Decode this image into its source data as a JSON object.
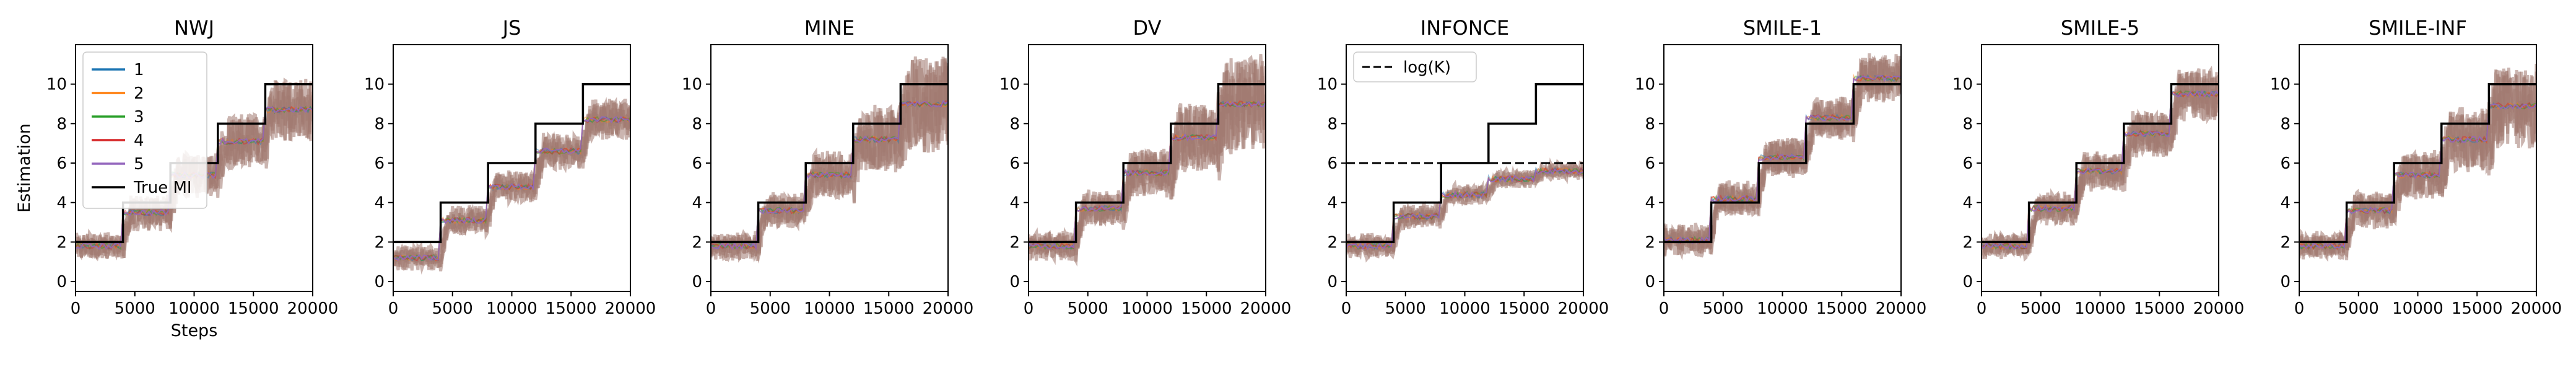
{
  "figure": {
    "ylabel": "Estimation",
    "xlabel": "Steps"
  },
  "colors": {
    "run_1": "#1f77b4",
    "run_2": "#ff7f0e",
    "run_3": "#2ca02c",
    "run_4": "#d62728",
    "run_5": "#9467bd",
    "true_mi": "#000000",
    "noise_band": "#a0786f"
  },
  "legend_entries": [
    "1",
    "2",
    "3",
    "4",
    "5",
    "True MI"
  ],
  "chart_data": [
    {
      "type": "line",
      "title": "NWJ",
      "xlim": [
        0,
        20000
      ],
      "ylim": [
        -0.5,
        12
      ],
      "xticks": [
        0,
        5000,
        10000,
        15000,
        20000
      ],
      "yticks": [
        0,
        2,
        4,
        6,
        8,
        10
      ],
      "true_mi": {
        "x": [
          0,
          4000,
          4000,
          8000,
          8000,
          12000,
          12000,
          16000,
          16000,
          20000
        ],
        "y": [
          2,
          2,
          4,
          4,
          6,
          6,
          8,
          8,
          10,
          10
        ]
      },
      "series": [
        {
          "name": "1"
        },
        {
          "name": "2"
        },
        {
          "name": "3"
        },
        {
          "name": "4"
        },
        {
          "name": "5"
        }
      ],
      "mean_levels": [
        1.8,
        3.5,
        5.4,
        7.1,
        8.7
      ],
      "noise": [
        0.6,
        0.8,
        1.0,
        1.3,
        1.5
      ]
    },
    {
      "type": "line",
      "title": "JS",
      "xlim": [
        0,
        20000
      ],
      "ylim": [
        -0.5,
        12
      ],
      "xticks": [
        0,
        5000,
        10000,
        15000,
        20000
      ],
      "yticks": [
        0,
        2,
        4,
        6,
        8,
        10
      ],
      "true_mi": {
        "x": [
          0,
          4000,
          4000,
          8000,
          8000,
          12000,
          12000,
          16000,
          16000,
          20000
        ],
        "y": [
          2,
          2,
          4,
          4,
          6,
          6,
          8,
          8,
          10,
          10
        ]
      },
      "series": [
        {
          "name": "1"
        },
        {
          "name": "2"
        },
        {
          "name": "3"
        },
        {
          "name": "4"
        },
        {
          "name": "5"
        }
      ],
      "mean_levels": [
        1.2,
        3.1,
        4.8,
        6.6,
        8.2
      ],
      "noise": [
        0.5,
        0.6,
        0.7,
        0.8,
        0.9
      ]
    },
    {
      "type": "line",
      "title": "MINE",
      "xlim": [
        0,
        20000
      ],
      "ylim": [
        -0.5,
        12
      ],
      "xticks": [
        0,
        5000,
        10000,
        15000,
        20000
      ],
      "yticks": [
        0,
        2,
        4,
        6,
        8,
        10
      ],
      "true_mi": {
        "x": [
          0,
          4000,
          4000,
          8000,
          8000,
          12000,
          12000,
          16000,
          16000,
          20000
        ],
        "y": [
          2,
          2,
          4,
          4,
          6,
          6,
          8,
          8,
          10,
          10
        ]
      },
      "series": [
        {
          "name": "1"
        },
        {
          "name": "2"
        },
        {
          "name": "3"
        },
        {
          "name": "4"
        },
        {
          "name": "5"
        }
      ],
      "mean_levels": [
        1.8,
        3.6,
        5.4,
        7.2,
        9.0
      ],
      "noise": [
        0.6,
        0.8,
        1.1,
        1.6,
        2.4
      ]
    },
    {
      "type": "line",
      "title": "DV",
      "xlim": [
        0,
        20000
      ],
      "ylim": [
        -0.5,
        12
      ],
      "xticks": [
        0,
        5000,
        10000,
        15000,
        20000
      ],
      "yticks": [
        0,
        2,
        4,
        6,
        8,
        10
      ],
      "true_mi": {
        "x": [
          0,
          4000,
          4000,
          8000,
          8000,
          12000,
          12000,
          16000,
          16000,
          20000
        ],
        "y": [
          2,
          2,
          4,
          4,
          6,
          6,
          8,
          8,
          10,
          10
        ]
      },
      "series": [
        {
          "name": "1"
        },
        {
          "name": "2"
        },
        {
          "name": "3"
        },
        {
          "name": "4"
        },
        {
          "name": "5"
        }
      ],
      "mean_levels": [
        1.8,
        3.7,
        5.5,
        7.3,
        9.0
      ],
      "noise": [
        0.6,
        0.8,
        1.1,
        1.6,
        2.4
      ]
    },
    {
      "type": "line",
      "title": "INFONCE",
      "xlim": [
        0,
        20000
      ],
      "ylim": [
        -0.5,
        12
      ],
      "xticks": [
        0,
        5000,
        10000,
        15000,
        20000
      ],
      "yticks": [
        0,
        2,
        4,
        6,
        8,
        10
      ],
      "true_mi": {
        "x": [
          0,
          4000,
          4000,
          8000,
          8000,
          12000,
          12000,
          16000,
          16000,
          20000
        ],
        "y": [
          2,
          2,
          4,
          4,
          6,
          6,
          8,
          8,
          10,
          10
        ]
      },
      "log_k": {
        "label": "log(K)",
        "value": 6.0
      },
      "series": [
        {
          "name": "1"
        },
        {
          "name": "2"
        },
        {
          "name": "3"
        },
        {
          "name": "4"
        },
        {
          "name": "5"
        }
      ],
      "mean_levels": [
        1.8,
        3.3,
        4.4,
        5.2,
        5.6
      ],
      "noise": [
        0.5,
        0.5,
        0.4,
        0.3,
        0.3
      ]
    },
    {
      "type": "line",
      "title": "SMILE-1",
      "xlim": [
        0,
        20000
      ],
      "ylim": [
        -0.5,
        12
      ],
      "xticks": [
        0,
        5000,
        10000,
        15000,
        20000
      ],
      "yticks": [
        0,
        2,
        4,
        6,
        8,
        10
      ],
      "true_mi": {
        "x": [
          0,
          4000,
          4000,
          8000,
          8000,
          12000,
          12000,
          16000,
          16000,
          20000
        ],
        "y": [
          2,
          2,
          4,
          4,
          6,
          6,
          8,
          8,
          10,
          10
        ]
      },
      "series": [
        {
          "name": "1"
        },
        {
          "name": "2"
        },
        {
          "name": "3"
        },
        {
          "name": "4"
        },
        {
          "name": "5"
        }
      ],
      "mean_levels": [
        2.1,
        4.2,
        6.3,
        8.3,
        10.3
      ],
      "noise": [
        0.7,
        0.8,
        0.9,
        1.0,
        1.1
      ]
    },
    {
      "type": "line",
      "title": "SMILE-5",
      "xlim": [
        0,
        20000
      ],
      "ylim": [
        -0.5,
        12
      ],
      "xticks": [
        0,
        5000,
        10000,
        15000,
        20000
      ],
      "yticks": [
        0,
        2,
        4,
        6,
        8,
        10
      ],
      "true_mi": {
        "x": [
          0,
          4000,
          4000,
          8000,
          8000,
          12000,
          12000,
          16000,
          16000,
          20000
        ],
        "y": [
          2,
          2,
          4,
          4,
          6,
          6,
          8,
          8,
          10,
          10
        ]
      },
      "series": [
        {
          "name": "1"
        },
        {
          "name": "2"
        },
        {
          "name": "3"
        },
        {
          "name": "4"
        },
        {
          "name": "5"
        }
      ],
      "mean_levels": [
        1.8,
        3.7,
        5.6,
        7.5,
        9.5
      ],
      "noise": [
        0.5,
        0.7,
        0.9,
        1.1,
        1.3
      ]
    },
    {
      "type": "line",
      "title": "SMILE-INF",
      "xlim": [
        0,
        20000
      ],
      "ylim": [
        -0.5,
        12
      ],
      "xticks": [
        0,
        5000,
        10000,
        15000,
        20000
      ],
      "yticks": [
        0,
        2,
        4,
        6,
        8,
        10
      ],
      "true_mi": {
        "x": [
          0,
          4000,
          4000,
          8000,
          8000,
          12000,
          12000,
          16000,
          16000,
          20000
        ],
        "y": [
          2,
          2,
          4,
          4,
          6,
          6,
          8,
          8,
          10,
          10
        ]
      },
      "series": [
        {
          "name": "1"
        },
        {
          "name": "2"
        },
        {
          "name": "3"
        },
        {
          "name": "4"
        },
        {
          "name": "5"
        }
      ],
      "mean_levels": [
        1.8,
        3.6,
        5.4,
        7.2,
        8.9
      ],
      "noise": [
        0.6,
        0.8,
        1.1,
        1.5,
        2.0
      ]
    }
  ]
}
